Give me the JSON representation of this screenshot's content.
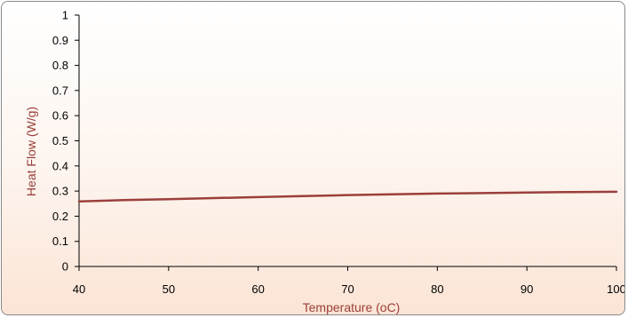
{
  "chart_data": {
    "type": "line",
    "title": "",
    "xlabel": "Temperature (oC)",
    "ylabel": "Heat Flow (W/g)",
    "xlim": [
      40,
      100
    ],
    "ylim": [
      0,
      1
    ],
    "x_ticks": [
      40,
      50,
      60,
      70,
      80,
      90,
      100
    ],
    "y_ticks": [
      0,
      0.1,
      0.2,
      0.3,
      0.4,
      0.5,
      0.6,
      0.7,
      0.8,
      0.9,
      1
    ],
    "grid": false,
    "legend": "none",
    "series": [
      {
        "color": "#9b3f3a",
        "x": [
          40,
          45,
          50,
          55,
          60,
          65,
          70,
          75,
          80,
          85,
          90,
          95,
          100
        ],
        "y": [
          0.259,
          0.264,
          0.268,
          0.272,
          0.276,
          0.28,
          0.284,
          0.287,
          0.29,
          0.292,
          0.294,
          0.296,
          0.297
        ]
      }
    ],
    "colors": {
      "axis_title": "#9b3f3a",
      "axis_line": "#000000"
    }
  }
}
